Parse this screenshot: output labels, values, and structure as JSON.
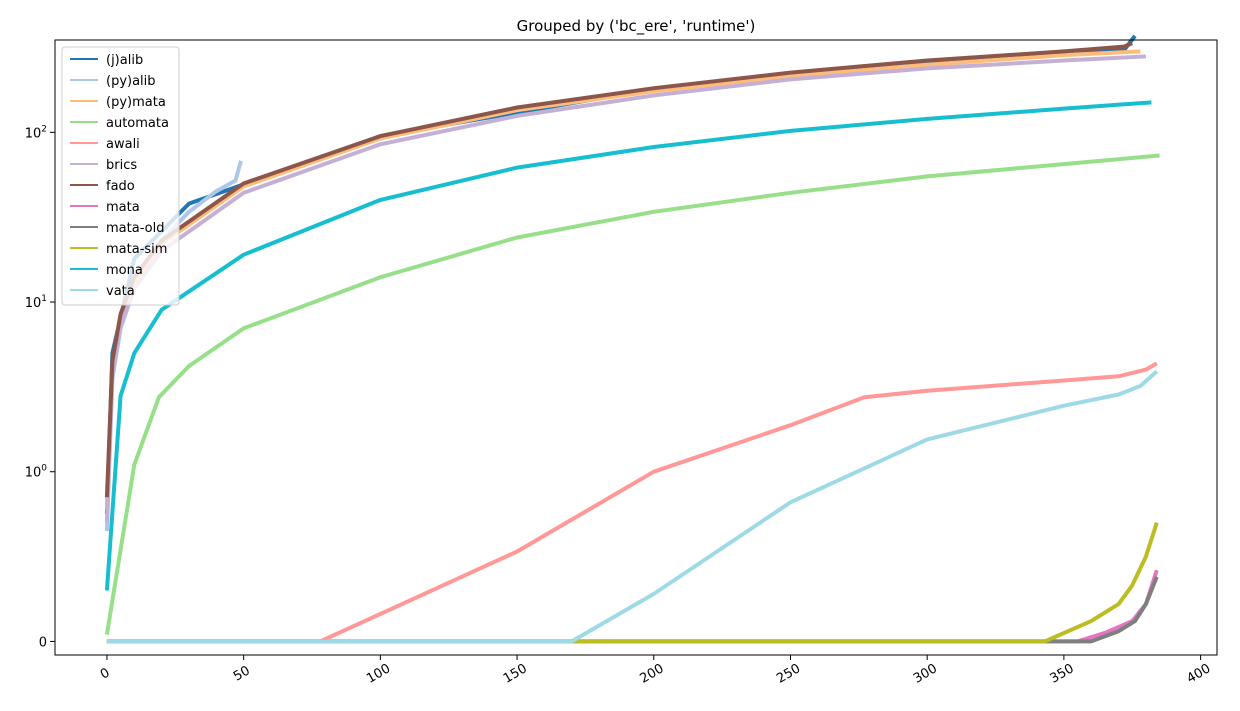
{
  "chart_data": {
    "type": "line",
    "title": "Grouped by ('bc_ere', 'runtime')",
    "xlabel": "",
    "ylabel": "",
    "xlim": [
      -19,
      406
    ],
    "ylim": [
      -0.08,
      350
    ],
    "yscale": "symlog",
    "linthresh": 1,
    "xticks": [
      0,
      50,
      100,
      150,
      200,
      250,
      300,
      350,
      400
    ],
    "xtick_labels": [
      "0",
      "50",
      "100",
      "150",
      "200",
      "250",
      "300",
      "350",
      "400"
    ],
    "yticks": [
      {
        "value": 0,
        "base": "0",
        "exp": ""
      },
      {
        "value": 1,
        "base": "10",
        "exp": "0"
      },
      {
        "value": 10,
        "base": "10",
        "exp": "1"
      },
      {
        "value": 100,
        "base": "10",
        "exp": "2"
      }
    ],
    "grid": false,
    "legend_position": "top-left",
    "series": [
      {
        "name": "(j)alib",
        "color": "#1f77b4",
        "x": [
          0,
          2,
          10,
          30,
          100,
          200,
          300,
          372,
          376
        ],
        "y": [
          0.75,
          5,
          18,
          38,
          95,
          180,
          255,
          305,
          370
        ]
      },
      {
        "name": "(py)alib",
        "color": "#aec7e8",
        "x": [
          0,
          2,
          5,
          10,
          20,
          30,
          40,
          47,
          49
        ],
        "y": [
          0.65,
          3.5,
          7,
          12,
          23,
          34,
          45,
          52,
          68
        ]
      },
      {
        "name": "(py)mata",
        "color": "#ffbb78",
        "x": [
          0,
          2,
          5,
          10,
          20,
          50,
          100,
          150,
          200,
          250,
          300,
          350,
          378
        ],
        "y": [
          0.78,
          4.2,
          8,
          13,
          22,
          48,
          92,
          135,
          175,
          215,
          250,
          285,
          300
        ]
      },
      {
        "name": "automata",
        "color": "#98df8a",
        "x": [
          0,
          10,
          19,
          30,
          50,
          100,
          150,
          200,
          250,
          300,
          350,
          385
        ],
        "y": [
          0.04,
          1.1,
          2.75,
          4.2,
          7,
          14,
          24,
          34,
          44,
          55,
          65,
          73
        ]
      },
      {
        "name": "awali",
        "color": "#ff9896",
        "x": [
          0,
          78,
          150,
          200,
          250,
          277,
          300,
          350,
          370,
          380,
          384
        ],
        "y": [
          0,
          0,
          0.53,
          1.0,
          1.88,
          2.75,
          3.0,
          3.45,
          3.65,
          4.0,
          4.35
        ]
      },
      {
        "name": "brics",
        "color": "#c5b0d5",
        "x": [
          0,
          2,
          5,
          10,
          20,
          50,
          100,
          150,
          200,
          250,
          300,
          350,
          380
        ],
        "y": [
          0.7,
          3.8,
          7.3,
          12,
          20,
          44,
          85,
          125,
          165,
          205,
          238,
          265,
          280
        ]
      },
      {
        "name": "fado",
        "color": "#8c564b",
        "x": [
          0,
          2,
          5,
          10,
          20,
          50,
          100,
          150,
          200,
          250,
          300,
          350,
          372,
          375
        ],
        "y": [
          0.85,
          4.5,
          8.5,
          14,
          23,
          50,
          95,
          140,
          182,
          225,
          265,
          300,
          320,
          335
        ]
      },
      {
        "name": "mata",
        "color": "#e377c2",
        "x": [
          0,
          355,
          365,
          375,
          380,
          384
        ],
        "y": [
          0,
          0,
          0.05,
          0.12,
          0.22,
          0.42
        ]
      },
      {
        "name": "mata-old",
        "color": "#7f7f7f",
        "x": [
          0,
          360,
          370,
          376,
          380,
          384
        ],
        "y": [
          0,
          0,
          0.06,
          0.12,
          0.22,
          0.38
        ]
      },
      {
        "name": "mata-sim",
        "color": "#bcbd22",
        "x": [
          0,
          343,
          360,
          370,
          375,
          380,
          384
        ],
        "y": [
          0,
          0,
          0.12,
          0.22,
          0.33,
          0.5,
          0.7
        ]
      },
      {
        "name": "mona",
        "color": "#17becf",
        "x": [
          0,
          5,
          10,
          20,
          50,
          100,
          150,
          200,
          250,
          300,
          350,
          382
        ],
        "y": [
          0.3,
          2.8,
          5,
          9,
          19,
          40,
          62,
          82,
          102,
          120,
          138,
          150
        ]
      },
      {
        "name": "vata",
        "color": "#9edae5",
        "x": [
          0,
          170,
          200,
          250,
          300,
          350,
          370,
          378,
          384
        ],
        "y": [
          0,
          0,
          0.28,
          0.82,
          1.55,
          2.45,
          2.85,
          3.2,
          3.9
        ]
      }
    ]
  }
}
